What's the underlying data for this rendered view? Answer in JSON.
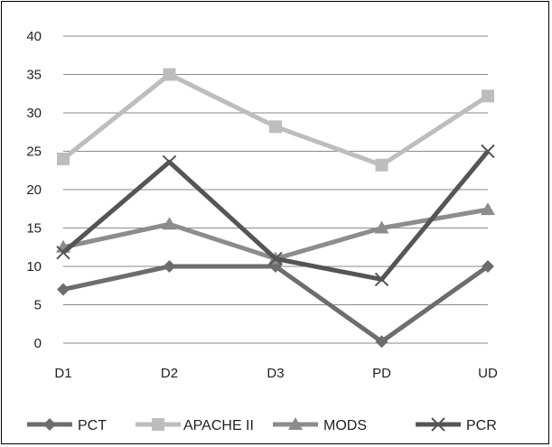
{
  "chart_data": {
    "type": "line",
    "title": "",
    "xlabel": "",
    "ylabel": "",
    "categories": [
      "D1",
      "D2",
      "D3",
      "PD",
      "UD"
    ],
    "ylim": [
      0,
      40
    ],
    "yticks": [
      "0",
      "5",
      "10",
      "15",
      "20",
      "25",
      "30",
      "35",
      "40"
    ],
    "grid": true,
    "legend_position": "bottom",
    "series": [
      {
        "name": "PCT",
        "values": [
          7,
          10,
          10,
          0.2,
          10
        ],
        "color": "#6d6d6d",
        "marker": "diamond"
      },
      {
        "name": "APACHE II",
        "values": [
          24,
          35,
          28.2,
          23.2,
          32.2
        ],
        "color": "#bdbdbd",
        "marker": "square"
      },
      {
        "name": "MODS",
        "values": [
          12.5,
          15.5,
          11,
          15,
          17.4
        ],
        "color": "#8c8c8c",
        "marker": "triangle"
      },
      {
        "name": "PCR",
        "values": [
          11.8,
          23.6,
          11,
          8.3,
          25
        ],
        "color": "#555555",
        "marker": "x"
      }
    ]
  }
}
